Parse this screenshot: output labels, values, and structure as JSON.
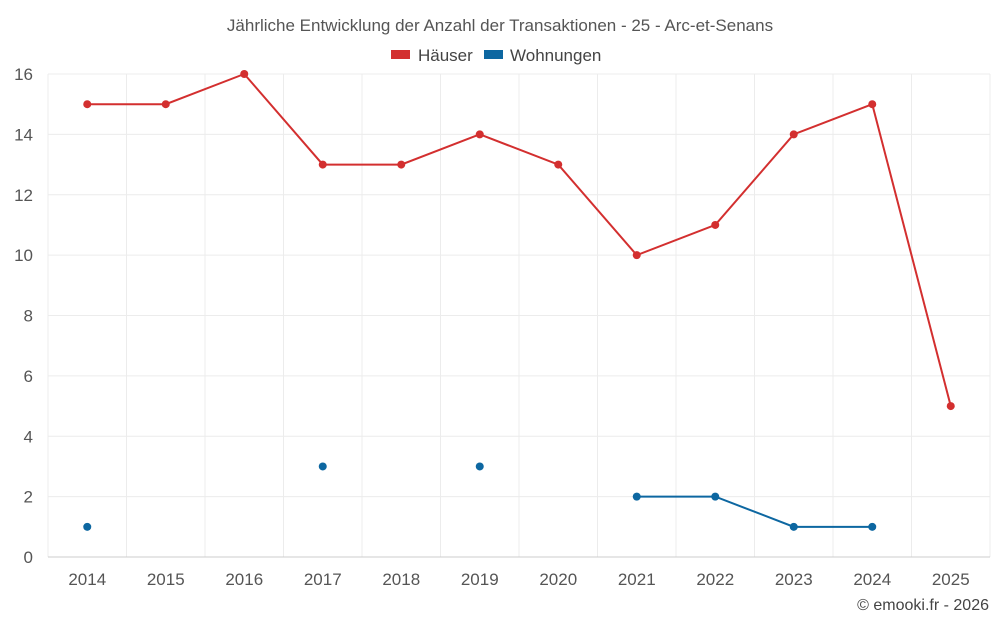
{
  "chart_data": {
    "type": "line",
    "title": "Jährliche Entwicklung der Anzahl der Transaktionen - 25 - Arc-et-Senans",
    "categories": [
      "2014",
      "2015",
      "2016",
      "2017",
      "2018",
      "2019",
      "2020",
      "2021",
      "2022",
      "2023",
      "2024",
      "2025"
    ],
    "series": [
      {
        "name": "Häuser",
        "color": "#d32f2f",
        "values": [
          15,
          15,
          16,
          13,
          13,
          14,
          13,
          10,
          11,
          14,
          15,
          5
        ]
      },
      {
        "name": "Wohnungen",
        "color": "#0d67a1",
        "values": [
          1,
          null,
          null,
          3,
          null,
          3,
          null,
          2,
          2,
          1,
          1,
          null
        ]
      }
    ],
    "ylim": [
      0,
      16
    ],
    "yticks": [
      0,
      2,
      4,
      6,
      8,
      10,
      12,
      14,
      16
    ],
    "xlabel": "",
    "ylabel": "",
    "grid": true,
    "legend": "top-center"
  },
  "credit": "© emooki.fr - 2026"
}
